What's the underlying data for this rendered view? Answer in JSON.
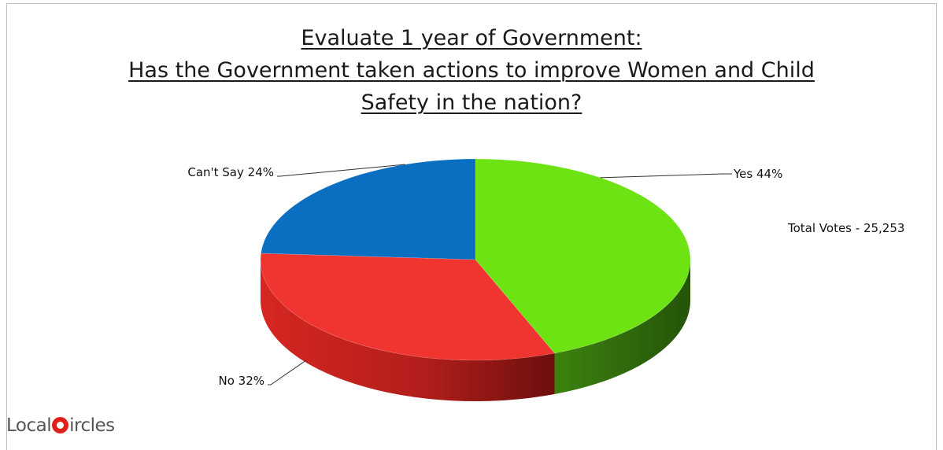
{
  "chart_data": {
    "type": "pie",
    "title_lines": [
      "Evaluate 1 year of Government:",
      "Has the Government taken actions to improve Women and Child",
      "Safety in the nation?"
    ],
    "slices": [
      {
        "label": "Yes 44%",
        "value": 44,
        "color": "#6ee313",
        "side_color": "#2f6a0b"
      },
      {
        "label": "No 32%",
        "value": 32,
        "color": "#f03530",
        "side_color": "#9a1c1a"
      },
      {
        "label": "Can't Say 24%",
        "value": 24,
        "color": "#0b6fc1",
        "side_color": "#0a4a86"
      }
    ],
    "annotation": "Total Votes - 25,253",
    "legend": "none"
  },
  "brand": {
    "prefix": "Local",
    "suffix": "ircles"
  }
}
